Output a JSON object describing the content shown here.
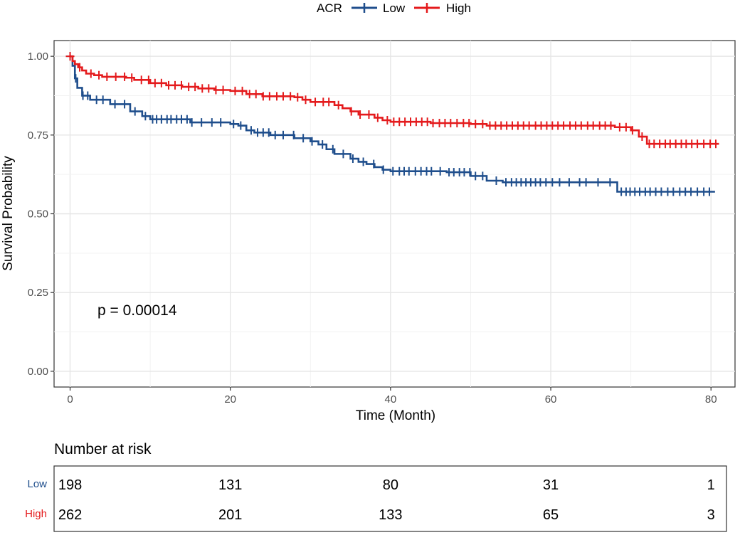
{
  "chart_data": {
    "type": "line",
    "subtype": "kaplan-meier",
    "title": "",
    "xlabel": "Time (Month)",
    "ylabel": "Survival Probability",
    "xlim": [
      -2,
      83
    ],
    "ylim": [
      -0.05,
      1.05
    ],
    "x_ticks": [
      0,
      20,
      40,
      60,
      80
    ],
    "x_tick_labels": [
      "0",
      "20",
      "40",
      "60",
      "80"
    ],
    "y_ticks": [
      0,
      0.25,
      0.5,
      0.75,
      1.0
    ],
    "y_tick_labels": [
      "0.00",
      "0.25",
      "0.50",
      "0.75",
      "1.00"
    ],
    "grid": true,
    "legend": {
      "title": "ACR",
      "placement": "top-center",
      "entries": [
        "Low",
        "High"
      ]
    },
    "annotation": "p = 0.00014",
    "series": [
      {
        "name": "Low",
        "color": "#1f4e8c",
        "steps": [
          [
            0,
            1.0
          ],
          [
            0.3,
            0.97
          ],
          [
            0.6,
            0.93
          ],
          [
            0.9,
            0.9
          ],
          [
            1.5,
            0.875
          ],
          [
            2.5,
            0.862
          ],
          [
            5,
            0.848
          ],
          [
            7.5,
            0.825
          ],
          [
            9,
            0.81
          ],
          [
            10,
            0.8
          ],
          [
            15,
            0.79
          ],
          [
            20,
            0.785
          ],
          [
            21,
            0.78
          ],
          [
            22,
            0.765
          ],
          [
            23,
            0.758
          ],
          [
            25,
            0.75
          ],
          [
            28,
            0.74
          ],
          [
            30,
            0.73
          ],
          [
            31,
            0.72
          ],
          [
            32,
            0.705
          ],
          [
            33,
            0.69
          ],
          [
            35,
            0.675
          ],
          [
            36,
            0.665
          ],
          [
            37,
            0.658
          ],
          [
            38,
            0.648
          ],
          [
            39,
            0.64
          ],
          [
            40,
            0.635
          ],
          [
            45,
            0.635
          ],
          [
            47,
            0.632
          ],
          [
            50,
            0.62
          ],
          [
            52,
            0.605
          ],
          [
            54,
            0.6
          ],
          [
            68,
            0.6
          ],
          [
            68.3,
            0.57
          ],
          [
            80.5,
            0.57
          ]
        ],
        "censor_times": [
          0.7,
          1.6,
          2.2,
          3.3,
          4.1,
          5.6,
          6.8,
          8.1,
          9.4,
          10.3,
          10.8,
          11.4,
          12.1,
          12.6,
          13.3,
          13.9,
          14.6,
          15.2,
          16.4,
          17.7,
          18.8,
          20.4,
          21.3,
          22.6,
          23.4,
          24.1,
          24.8,
          25.6,
          26.6,
          27.9,
          29.1,
          30.2,
          31.5,
          32.8,
          34.1,
          35.3,
          36.6,
          37.9,
          39.1,
          40.3,
          41.1,
          41.7,
          42.3,
          43.1,
          43.8,
          44.5,
          45.1,
          46.2,
          47.3,
          47.9,
          48.6,
          49.2,
          49.9,
          50.6,
          51.5,
          53.2,
          54.4,
          55.1,
          55.7,
          56.3,
          56.9,
          57.5,
          58.1,
          58.7,
          59.4,
          60.2,
          61.1,
          62.3,
          63.6,
          64.4,
          65.9,
          67.4,
          68.8,
          69.4,
          69.9,
          70.5,
          71.1,
          71.8,
          72.4,
          73.1,
          73.8,
          74.6,
          75.3,
          76.1,
          76.8,
          77.5,
          78.3,
          79.1,
          79.8
        ]
      },
      {
        "name": "High",
        "color": "#e41a1c",
        "steps": [
          [
            0,
            1.0
          ],
          [
            0.3,
            0.985
          ],
          [
            0.6,
            0.975
          ],
          [
            1,
            0.965
          ],
          [
            1.5,
            0.955
          ],
          [
            2,
            0.945
          ],
          [
            3,
            0.94
          ],
          [
            4,
            0.935
          ],
          [
            7,
            0.932
          ],
          [
            8,
            0.925
          ],
          [
            10,
            0.915
          ],
          [
            12,
            0.908
          ],
          [
            14,
            0.903
          ],
          [
            16,
            0.898
          ],
          [
            18,
            0.893
          ],
          [
            20,
            0.89
          ],
          [
            22,
            0.88
          ],
          [
            24,
            0.873
          ],
          [
            28,
            0.87
          ],
          [
            29,
            0.862
          ],
          [
            30,
            0.855
          ],
          [
            33,
            0.845
          ],
          [
            34,
            0.835
          ],
          [
            35,
            0.825
          ],
          [
            36,
            0.815
          ],
          [
            38,
            0.805
          ],
          [
            39,
            0.797
          ],
          [
            40,
            0.792
          ],
          [
            45,
            0.788
          ],
          [
            50,
            0.785
          ],
          [
            52,
            0.78
          ],
          [
            68,
            0.775
          ],
          [
            70,
            0.765
          ],
          [
            71,
            0.745
          ],
          [
            72,
            0.722
          ],
          [
            81,
            0.722
          ]
        ],
        "censor_times": [
          1.2,
          2.6,
          3.6,
          4.6,
          5.7,
          6.8,
          7.7,
          8.9,
          9.8,
          10.6,
          11.4,
          12.3,
          13.1,
          13.9,
          14.8,
          15.6,
          16.5,
          17.3,
          18.2,
          19.1,
          20.6,
          21.5,
          22.4,
          23.2,
          24.1,
          24.9,
          25.8,
          26.6,
          27.5,
          28.4,
          29.4,
          30.6,
          31.6,
          32.3,
          33.5,
          35.1,
          36.2,
          37.3,
          38.4,
          39.6,
          40.4,
          41.1,
          41.8,
          42.5,
          43.2,
          43.9,
          44.6,
          45.3,
          46.1,
          46.8,
          47.5,
          48.3,
          49.1,
          49.8,
          50.6,
          51.5,
          52.4,
          53.1,
          53.8,
          54.5,
          55.2,
          55.9,
          56.6,
          57.3,
          58.1,
          58.8,
          59.5,
          60.2,
          60.9,
          61.6,
          62.4,
          63.1,
          63.8,
          64.6,
          65.3,
          66.1,
          66.8,
          67.5,
          68.6,
          69.4,
          70.2,
          71.4,
          72.3,
          72.9,
          73.6,
          74.3,
          74.9,
          75.6,
          76.3,
          76.9,
          77.6,
          78.3,
          79.1,
          79.9,
          80.6
        ]
      }
    ]
  },
  "risk_table": {
    "title": "Number at risk",
    "times": [
      0,
      20,
      40,
      60,
      80
    ],
    "rows": [
      {
        "label": "Low",
        "color": "#1f4e8c",
        "values": [
          "198",
          "131",
          "80",
          "31",
          "1"
        ]
      },
      {
        "label": "High",
        "color": "#e41a1c",
        "values": [
          "262",
          "201",
          "133",
          "65",
          "3"
        ]
      }
    ]
  }
}
